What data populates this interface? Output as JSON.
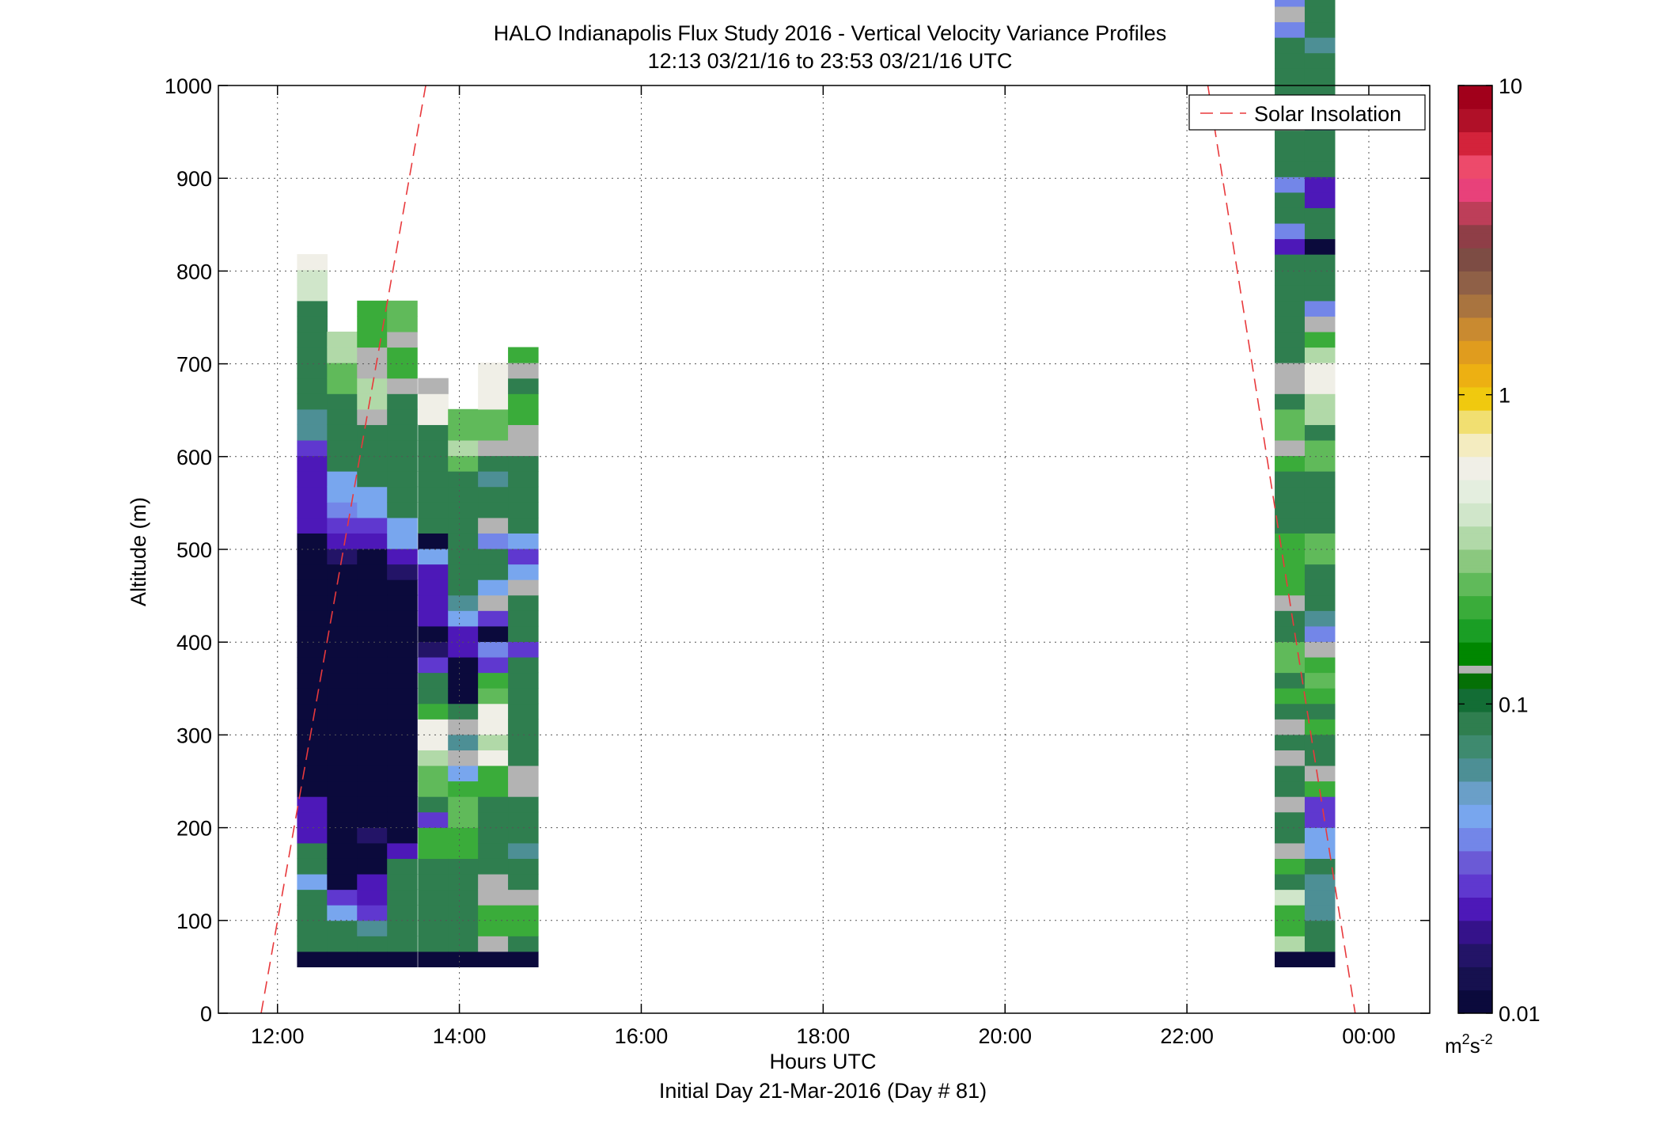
{
  "chart_data": {
    "type": "heatmap",
    "title": "HALO Indianapolis Flux Study 2016 - Vertical Velocity Variance Profiles",
    "subtitle": "12:13 03/21/16 to 23:53 03/21/16  UTC",
    "xlabel": "Hours UTC",
    "xlabel2": "Initial Day 21-Mar-2016 (Day # 81)",
    "ylabel": "Altitude (m)",
    "xlim": [
      11.35,
      24.67
    ],
    "ylim": [
      0,
      1000
    ],
    "x_ticks": [
      12,
      14,
      16,
      18,
      20,
      22,
      24
    ],
    "x_tick_labels": [
      "12:00",
      "14:00",
      "16:00",
      "18:00",
      "20:00",
      "22:00",
      "00:00"
    ],
    "y_ticks": [
      0,
      100,
      200,
      300,
      400,
      500,
      600,
      700,
      800,
      900,
      1000
    ],
    "y_tick_labels": [
      "0",
      "100",
      "200",
      "300",
      "400",
      "500",
      "600",
      "700",
      "800",
      "900",
      "1000"
    ],
    "grid": true,
    "legend": {
      "location": "top-right",
      "entries": [
        "Solar Insolation"
      ]
    },
    "colorbar": {
      "scale": "log",
      "lim": [
        0.01,
        10
      ],
      "tick_values": [
        0.01,
        0.1,
        1,
        10
      ],
      "tick_labels": [
        "0.01",
        "0.1",
        "1",
        "10"
      ],
      "unit_label": {
        "base": "m",
        "sup1": "2",
        "mid": "s",
        "sup2": "-2"
      }
    },
    "bin_height_m": 16.7,
    "bin_width_h": 0.33,
    "first_altitude_m": 50,
    "key": {
      "K": 0.011,
      "V": 0.016,
      "P": 0.022,
      "L": 0.028,
      "S": 0.035,
      "T": 0.045,
      "D": 0.065,
      "G": 0.09,
      "M": 0.13,
      "m": 0.19,
      "g": 0.26,
      "W": 0.35,
      "A": 0.38,
      "Y": 0.55,
      "O": 1.0
    },
    "columns": [
      {
        "x": 12.38,
        "cells": "KGGGGTGGPPPKKKKKKKKKKKKKKKKKPPPPPLDDGGGGGGGAAY"
      },
      {
        "x": 12.71,
        "cells": "KGGTLKKKKKKKKKKKKKKKKKKKKKVPLSTTGGGGGggWW"
      },
      {
        "x": 13.04,
        "cells": "KGDLPPKKVKKKKKKKKKKKKKKKKKKPLTTGGGGMWWMMmmm"
      },
      {
        "x": 13.37,
        "cells": "KGGGGGGPKKKKKKKKKKKKKKKKKVPTTGGGGGGGGMmmMgg"
      },
      {
        "x": 13.71,
        "cells": "KGGGGGGmmLGggWYYmGGLVKPPPPTKGGGGGGGYYM"
      },
      {
        "x": 14.04,
        "cells": "KGGGGGGmmggmTMDMGKKKPPTDGGGGGGGGgWgg"
      },
      {
        "x": 14.37,
        "cells": "KMmmMMGGGGGmmYWYYgmLSKLMTGGSMGGDGMggYYY"
      },
      {
        "x": 14.7,
        "cells": "KGmmMGGDGGGMMGGGGGGGLGGGMTLTGGGGGMMmmGMm"
      },
      {
        "x": 23.13,
        "cells": "KWmmAGmMGGMGGMGMGmGggGGMmmmmGGGGmMggGMMGGGGGGGPSGGSGGGMPGGGGSMSGWSP"
      },
      {
        "x": 23.46,
        "cells": "KGGDDDGTTLLmMGGmGmgmMSDGGGggGGGGggGWWYYWmMSGGGKGGPPGGGDPGGGDGGGWP"
      }
    ],
    "solar_insolation_lines": [
      {
        "x": [
          11.82,
          13.63
        ],
        "y": [
          0,
          1000
        ]
      },
      {
        "x": [
          22.23,
          23.85
        ],
        "y": [
          1000,
          0
        ]
      }
    ],
    "colormap": [
      "#0b0a3c",
      "#16114f",
      "#231467",
      "#35128a",
      "#4d18b8",
      "#5f38cf",
      "#6b5ad6",
      "#7386e8",
      "#78a6ee",
      "#6a9fc8",
      "#4d8f95",
      "#3e8a6f",
      "#2f7e4f",
      "#136d35",
      "#057006",
      "#008700",
      "#1a9e25",
      "#3aac3a",
      "#60ba5a",
      "#8bc87f",
      "#b1d9a8",
      "#d0e6ca",
      "#e4eedf",
      "#f0efe7",
      "#f4ecc0",
      "#f1df71",
      "#f0c90f",
      "#edb012",
      "#e09c1e",
      "#c98a30",
      "#a9743f",
      "#8f6047",
      "#7d4c44",
      "#8f3e47",
      "#bd3e59",
      "#e8417a",
      "#ed4a6b",
      "#d3233b",
      "#b01028",
      "#a1001b"
    ],
    "colormap_gray_break": 0.37
  }
}
